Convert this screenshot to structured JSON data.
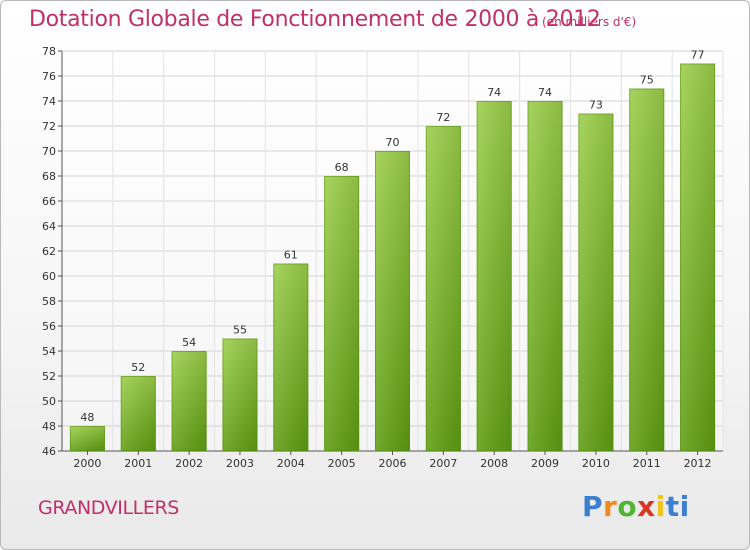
{
  "chart_data": {
    "type": "bar",
    "title": "Dotation Globale de Fonctionnement de 2000 à 2012",
    "subtitle": "(en milliers d'€)",
    "categories": [
      "2000",
      "2001",
      "2002",
      "2003",
      "2004",
      "2005",
      "2006",
      "2007",
      "2008",
      "2009",
      "2010",
      "2011",
      "2012"
    ],
    "values": [
      48,
      52,
      54,
      55,
      61,
      68,
      70,
      72,
      74,
      74,
      73,
      75,
      77
    ],
    "ylim": [
      46,
      78
    ],
    "yticks": [
      46,
      48,
      50,
      52,
      54,
      56,
      58,
      60,
      62,
      64,
      66,
      68,
      70,
      72,
      74,
      76,
      78
    ],
    "grid": true,
    "bar_color_top": "#9ccf4a",
    "bar_color_bottom": "#5f9e12"
  },
  "commune": "GRANDVILLERS",
  "logo": {
    "letters": [
      "P",
      "r",
      "o",
      "x",
      "i",
      "t",
      "i"
    ]
  }
}
